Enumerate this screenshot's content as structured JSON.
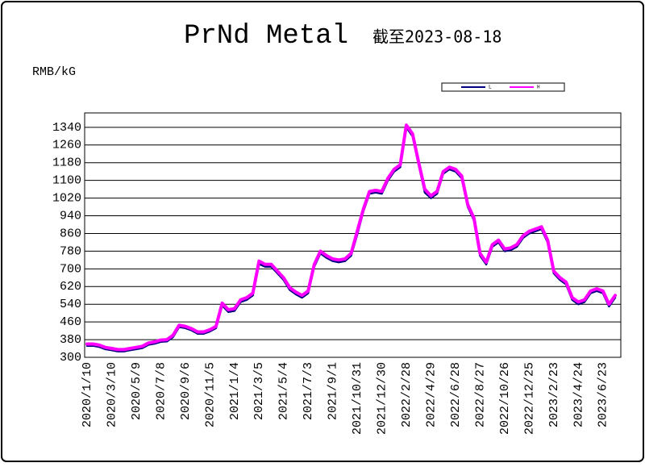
{
  "chart_data": {
    "type": "line",
    "title": "PrNd Metal",
    "subtitle": "截至2023-08-18",
    "y_label": "RMB/kG",
    "categories": [
      "2020/1/10",
      null,
      null,
      null,
      "2020/3/10",
      null,
      null,
      null,
      "2020/5/9",
      null,
      null,
      null,
      "2020/7/8",
      null,
      null,
      null,
      "2020/9/6",
      null,
      null,
      null,
      "2020/11/5",
      null,
      null,
      null,
      "2021/1/4",
      null,
      null,
      null,
      "2021/3/5",
      null,
      null,
      null,
      "2021/5/4",
      null,
      null,
      null,
      "2021/7/3",
      null,
      null,
      null,
      "2021/9/1",
      null,
      null,
      null,
      "2021/10/31",
      null,
      null,
      null,
      "2021/12/30",
      null,
      null,
      null,
      "2022/2/28",
      null,
      null,
      null,
      "2022/4/29",
      null,
      null,
      null,
      "2022/6/28",
      null,
      null,
      null,
      "2022/8/27",
      null,
      null,
      null,
      "2022/10/26",
      null,
      null,
      null,
      "2022/12/25",
      null,
      null,
      null,
      "2023/2/23",
      null,
      null,
      null,
      "2023/4/24",
      null,
      null,
      null,
      "2023/6/23",
      null,
      null
    ],
    "series": [
      {
        "name": "L",
        "color": "#000080",
        "values": [
          352,
          352,
          347,
          337,
          332,
          327,
          327,
          332,
          337,
          342,
          357,
          362,
          370,
          372,
          392,
          437,
          432,
          422,
          407,
          407,
          417,
          432,
          535,
          505,
          510,
          550,
          560,
          580,
          722,
          710,
          710,
          680,
          650,
          605,
          585,
          570,
          590,
          710,
          770,
          750,
          735,
          730,
          735,
          760,
          855,
          960,
          1040,
          1045,
          1040,
          1100,
          1140,
          1160,
          1340,
          1300,
          1170,
          1045,
          1020,
          1040,
          1130,
          1150,
          1140,
          1110,
          980,
          920,
          760,
          720,
          800,
          820,
          780,
          785,
          800,
          840,
          860,
          870,
          880,
          820,
          680,
          650,
          630,
          560,
          540,
          550,
          590,
          600,
          590,
          530,
          570
        ]
      },
      {
        "name": "H",
        "color": "#ff00ff",
        "values": [
          360,
          360,
          355,
          345,
          340,
          335,
          335,
          340,
          345,
          350,
          365,
          370,
          378,
          380,
          400,
          445,
          440,
          430,
          415,
          415,
          425,
          440,
          545,
          515,
          520,
          560,
          570,
          590,
          735,
          720,
          720,
          690,
          660,
          615,
          595,
          580,
          600,
          720,
          780,
          760,
          745,
          740,
          745,
          770,
          870,
          970,
          1050,
          1055,
          1050,
          1110,
          1150,
          1170,
          1350,
          1310,
          1180,
          1060,
          1030,
          1050,
          1140,
          1160,
          1150,
          1120,
          990,
          930,
          770,
          730,
          810,
          830,
          790,
          795,
          810,
          850,
          870,
          880,
          890,
          830,
          690,
          660,
          640,
          570,
          550,
          560,
          600,
          610,
          600,
          540,
          580
        ]
      }
    ],
    "ylim": [
      300,
      1405
    ],
    "yticks": [
      300,
      380,
      460,
      540,
      620,
      700,
      780,
      860,
      940,
      1020,
      1100,
      1180,
      1260,
      1340
    ],
    "grid": true
  }
}
